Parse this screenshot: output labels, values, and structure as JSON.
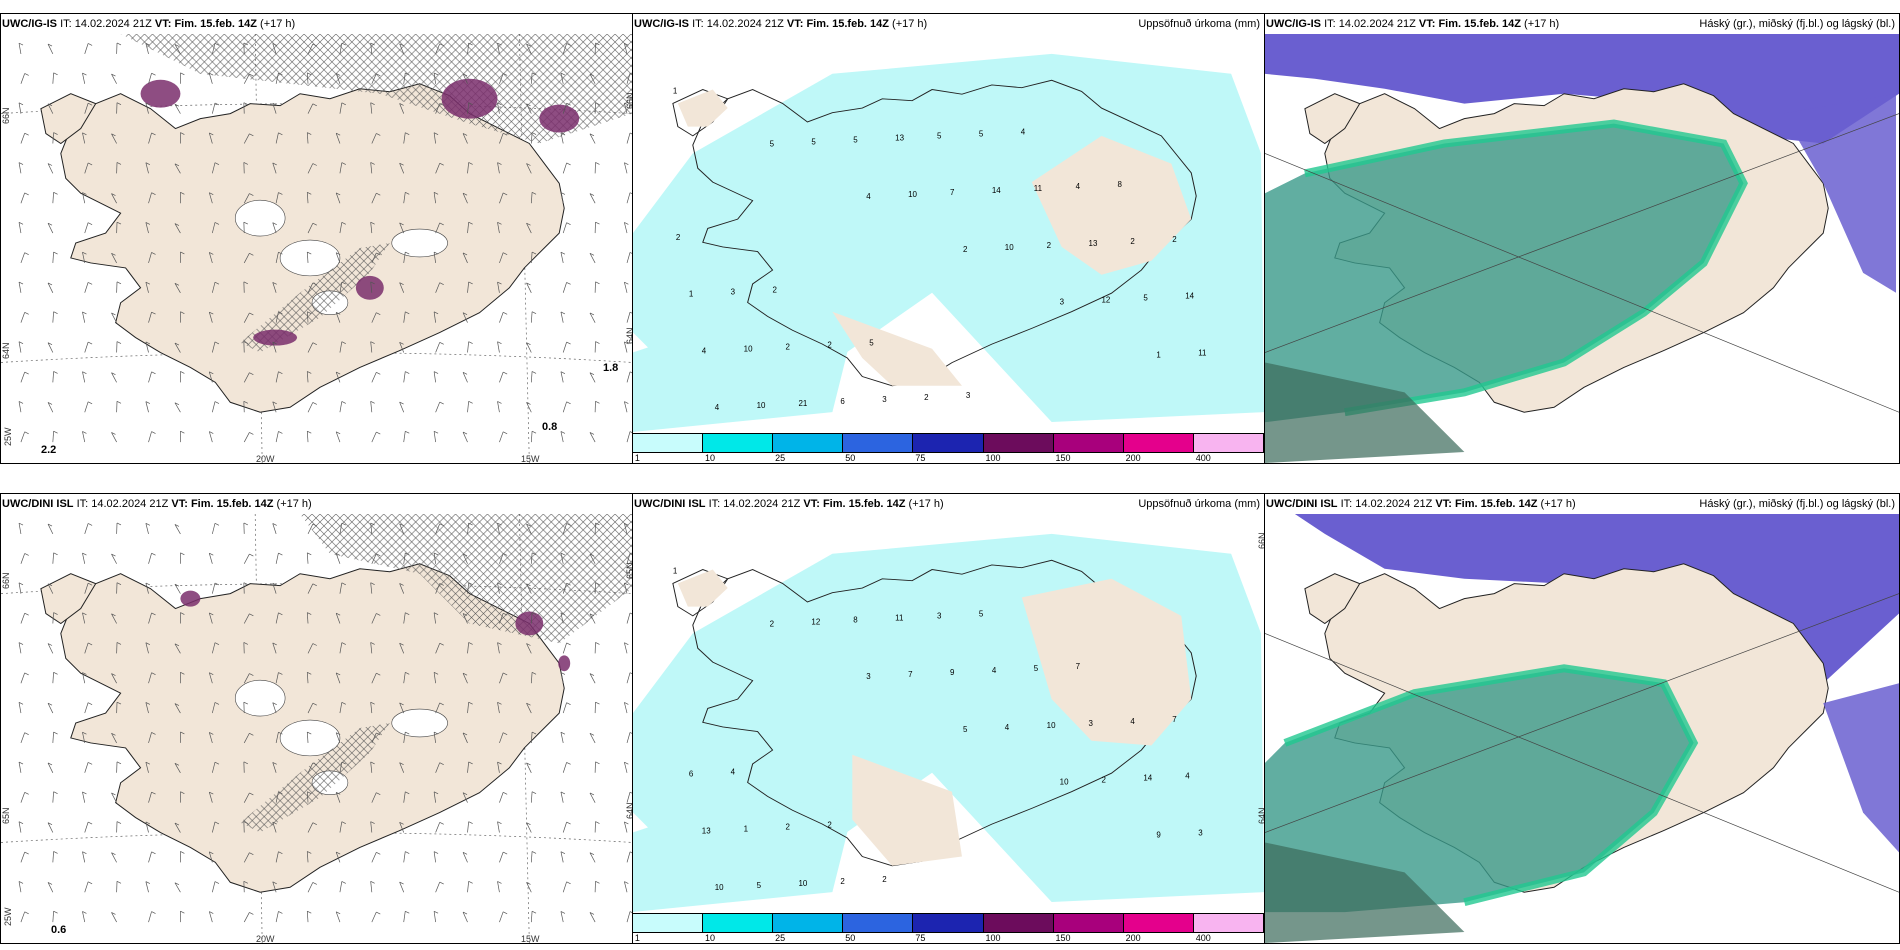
{
  "rows": [
    {
      "model": "UWC/IG-IS",
      "it_label": "IT:",
      "it": "14.02.2024 21Z",
      "vt_label": "VT:",
      "vt": "Fim. 15.feb. 14Z",
      "lead": "(+17 h)",
      "point_values": [
        "1.8",
        "0.8",
        "2.2"
      ],
      "precip_labels": [
        "1",
        "5",
        "4",
        "2",
        "3",
        "1",
        "4",
        "5",
        "10",
        "10",
        "12",
        "11",
        "10",
        "5",
        "7",
        "2",
        "5",
        "4",
        "21",
        "13",
        "14",
        "13",
        "14",
        "10",
        "6",
        "5",
        "11",
        "2",
        "1",
        "2",
        "3",
        "5",
        "4",
        "2",
        "3",
        "2",
        "2",
        "4",
        "8",
        "2",
        "2",
        "5",
        "3"
      ]
    },
    {
      "model": "UWC/DINI ISL",
      "it_label": "IT:",
      "it": "14.02.2024 21Z",
      "vt_label": "VT:",
      "vt": "Fim. 15.feb. 14Z",
      "lead": "(+17 h)",
      "point_values": [
        "0.6"
      ],
      "precip_labels": [
        "1",
        "2",
        "3",
        "5",
        "10",
        "9",
        "10",
        "12",
        "7",
        "4",
        "2",
        "3",
        "5",
        "8",
        "9",
        "10",
        "14",
        "13",
        "10",
        "11",
        "4",
        "3",
        "4",
        "1",
        "2",
        "3",
        "5",
        "4",
        "6",
        "2",
        "2",
        "5",
        "7",
        "7",
        "4",
        "2"
      ]
    }
  ],
  "precip_title": "Uppsöfnuð úrkoma (mm)",
  "cloud_title": "Háský (gr.), miðský (fj.bl.) og lágský (bl.)",
  "colorbar": {
    "labels": [
      "1",
      "10",
      "25",
      "50",
      "75",
      "100",
      "150",
      "200",
      "400"
    ],
    "colors": [
      "#c8fcfc",
      "#00e8e8",
      "#00b4e8",
      "#2c64e0",
      "#1c24b0",
      "#6c0c5c",
      "#a8007c",
      "#e4008c",
      "#f8b4f0"
    ]
  },
  "axes": {
    "lat_labels": [
      "66N",
      "64N",
      "65N"
    ],
    "lon_labels": [
      "20W",
      "15W",
      "25W"
    ]
  },
  "colors": {
    "land": "#f2e6d8",
    "precip_light": "#bff8f8",
    "high_cloud": "#6a5fd0",
    "mid_cloud": "#3a9a8a",
    "low_cloud": "#20c890",
    "freezing": "#7a2e6c"
  }
}
